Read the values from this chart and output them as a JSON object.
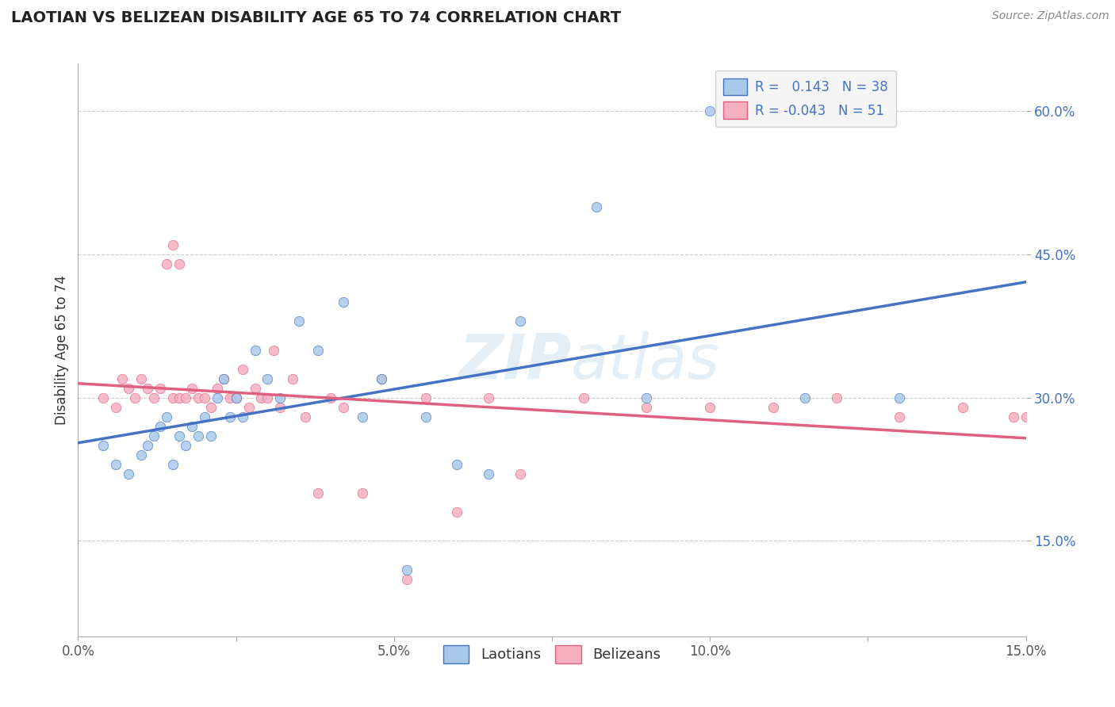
{
  "title": "LAOTIAN VS BELIZEAN DISABILITY AGE 65 TO 74 CORRELATION CHART",
  "source_text": "Source: ZipAtlas.com",
  "ylabel": "Disability Age 65 to 74",
  "xlim": [
    0.0,
    0.15
  ],
  "ylim": [
    0.05,
    0.65
  ],
  "xticks": [
    0.0,
    0.025,
    0.05,
    0.075,
    0.1,
    0.125,
    0.15
  ],
  "xtick_labels": [
    "0.0%",
    "",
    "5.0%",
    "",
    "10.0%",
    "",
    "15.0%"
  ],
  "yticks": [
    0.15,
    0.3,
    0.45,
    0.6
  ],
  "ytick_labels": [
    "15.0%",
    "30.0%",
    "45.0%",
    "60.0%"
  ],
  "laotian_color": "#a8c8e8",
  "belizean_color": "#f4afc0",
  "laotian_line_color": "#4472c4",
  "belizean_line_color": "#e06080",
  "R_laotian": 0.143,
  "N_laotian": 38,
  "R_belizean": -0.043,
  "N_belizean": 51,
  "watermark": "ZIPatlas",
  "laotian_x": [
    0.004,
    0.006,
    0.008,
    0.01,
    0.011,
    0.012,
    0.013,
    0.014,
    0.015,
    0.016,
    0.017,
    0.018,
    0.019,
    0.02,
    0.021,
    0.022,
    0.023,
    0.024,
    0.025,
    0.026,
    0.028,
    0.03,
    0.032,
    0.035,
    0.038,
    0.042,
    0.045,
    0.048,
    0.052,
    0.055,
    0.06,
    0.065,
    0.07,
    0.082,
    0.09,
    0.1,
    0.115,
    0.13
  ],
  "laotian_y": [
    0.25,
    0.23,
    0.22,
    0.24,
    0.25,
    0.26,
    0.27,
    0.28,
    0.23,
    0.26,
    0.25,
    0.27,
    0.26,
    0.28,
    0.26,
    0.3,
    0.32,
    0.28,
    0.3,
    0.28,
    0.35,
    0.32,
    0.3,
    0.38,
    0.35,
    0.4,
    0.28,
    0.32,
    0.12,
    0.28,
    0.23,
    0.22,
    0.38,
    0.5,
    0.3,
    0.6,
    0.3,
    0.3
  ],
  "belizean_x": [
    0.004,
    0.006,
    0.007,
    0.008,
    0.009,
    0.01,
    0.011,
    0.012,
    0.013,
    0.014,
    0.015,
    0.015,
    0.016,
    0.016,
    0.017,
    0.018,
    0.019,
    0.02,
    0.021,
    0.022,
    0.023,
    0.024,
    0.025,
    0.026,
    0.027,
    0.028,
    0.029,
    0.03,
    0.031,
    0.032,
    0.034,
    0.036,
    0.038,
    0.04,
    0.042,
    0.045,
    0.048,
    0.052,
    0.055,
    0.06,
    0.065,
    0.07,
    0.08,
    0.09,
    0.1,
    0.11,
    0.12,
    0.13,
    0.14,
    0.148,
    0.15
  ],
  "belizean_y": [
    0.3,
    0.29,
    0.32,
    0.31,
    0.3,
    0.32,
    0.31,
    0.3,
    0.31,
    0.44,
    0.46,
    0.3,
    0.44,
    0.3,
    0.3,
    0.31,
    0.3,
    0.3,
    0.29,
    0.31,
    0.32,
    0.3,
    0.3,
    0.33,
    0.29,
    0.31,
    0.3,
    0.3,
    0.35,
    0.29,
    0.32,
    0.28,
    0.2,
    0.3,
    0.29,
    0.2,
    0.32,
    0.11,
    0.3,
    0.18,
    0.3,
    0.22,
    0.3,
    0.29,
    0.29,
    0.29,
    0.3,
    0.28,
    0.29,
    0.28,
    0.28
  ]
}
